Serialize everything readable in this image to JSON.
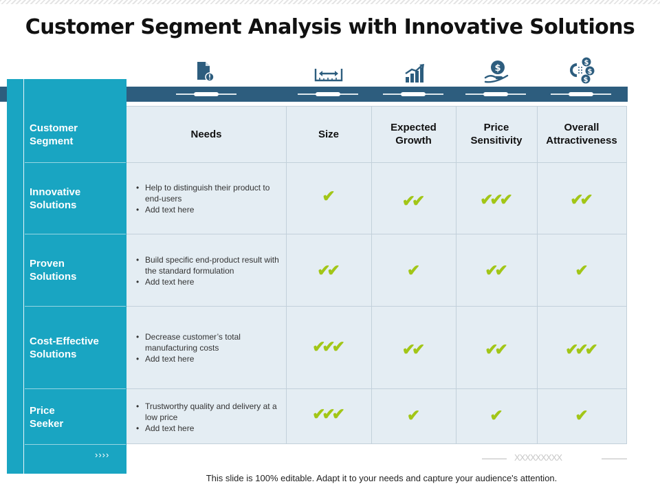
{
  "title": "Customer Segment Analysis with Innovative Solutions",
  "sidebar": {
    "header": "Customer\nSegment",
    "more_chevrons": "››››",
    "rows": [
      {
        "label": "Innovative\nSolutions"
      },
      {
        "label": "Proven\nSolutions"
      },
      {
        "label": "Cost-Effective\nSolutions"
      },
      {
        "label": "Price\nSeeker"
      }
    ]
  },
  "columns": [
    {
      "label": "Needs",
      "icon": "document-alert-icon"
    },
    {
      "label": "Size",
      "icon": "ruler-measure-icon"
    },
    {
      "label": "Expected\nGrowth",
      "icon": "growth-chart-icon"
    },
    {
      "label": "Price\nSensitivity",
      "icon": "hand-dollar-coin-icon"
    },
    {
      "label": "Overall\nAttractiveness",
      "icon": "magnet-dollar-coins-icon"
    }
  ],
  "rows": [
    {
      "needs": [
        "Help to distinguish their product to end-users",
        "Add text here"
      ],
      "ratings": {
        "size": 1,
        "growth": 2,
        "price_sensitivity": 3,
        "attractiveness": 2
      }
    },
    {
      "needs": [
        "Build specific end-product result with the standard formulation",
        "Add text here"
      ],
      "ratings": {
        "size": 2,
        "growth": 1,
        "price_sensitivity": 2,
        "attractiveness": 1
      }
    },
    {
      "needs": [
        "Decrease customer’s total manufacturing costs",
        "Add text here"
      ],
      "ratings": {
        "size": 3,
        "growth": 2,
        "price_sensitivity": 2,
        "attractiveness": 3
      }
    },
    {
      "needs": [
        "Trustworthy quality and delivery at a low price",
        "Add text here"
      ],
      "ratings": {
        "size": 3,
        "growth": 1,
        "price_sensitivity": 1,
        "attractiveness": 1
      }
    }
  ],
  "check_symbol": "✔",
  "footer": {
    "placeholder_marks": "XXXXXXXXX",
    "note": "This slide is 100% editable. Adapt it to your needs and capture your audience's attention."
  },
  "colors": {
    "sidebar": "#19a5c2",
    "band": "#2d5d7e",
    "table_bg": "#e4edf3",
    "check": "#a2c617",
    "icon": "#2d5d7e"
  }
}
